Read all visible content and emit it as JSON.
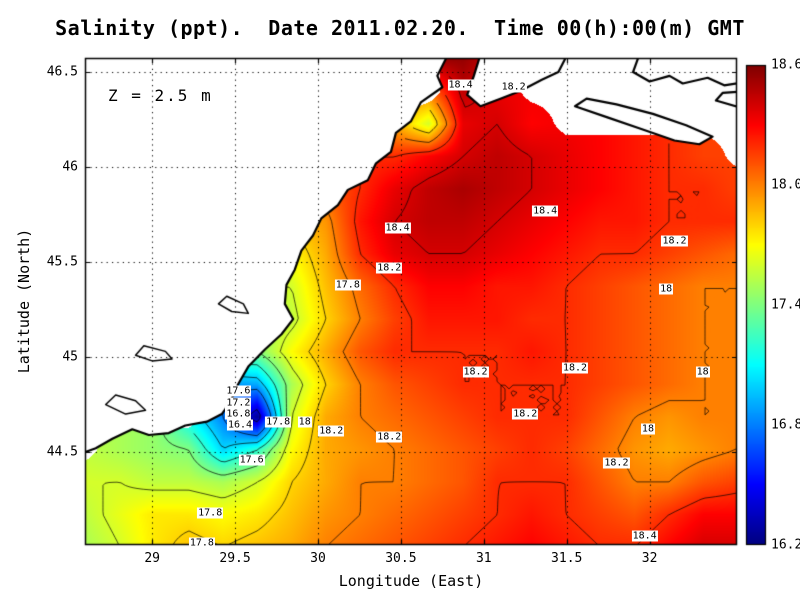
{
  "title": "Salinity (ppt).  Date 2011.02.20.  Time 00(h):00(m) GMT",
  "annotation": "Z = 2.5 m",
  "axes": {
    "x_label": "Longitude (East)",
    "y_label": "Latitude (North)"
  },
  "colorbar": {
    "min": 16.2,
    "max": 18.6,
    "ticks": [
      {
        "v": 18.6,
        "label": "18.6"
      },
      {
        "v": 18.0,
        "label": "18.0"
      },
      {
        "v": 17.4,
        "label": "17.4"
      },
      {
        "v": 16.8,
        "label": "16.8"
      },
      {
        "v": 16.2,
        "label": "16.2"
      }
    ]
  },
  "chart_data": {
    "type": "heatmap",
    "variable": "Salinity (ppt)",
    "title": "Salinity (ppt).  Date 2011.02.20.  Time 00(h):00(m) GMT",
    "xlabel": "Longitude (East)",
    "ylabel": "Latitude (North)",
    "lon_range": [
      28.595,
      32.527
    ],
    "lat_range": [
      44.011,
      46.574
    ],
    "x_ticks": {
      "values": [
        29,
        29.5,
        30,
        30.5,
        31,
        31.5,
        32
      ],
      "labels": [
        "29",
        "29.5",
        "30",
        "30.5",
        "31",
        "31.5",
        "32"
      ]
    },
    "y_ticks": {
      "values": [
        44.5,
        45,
        45.5,
        46,
        46.5
      ],
      "labels": [
        "44.5",
        "45",
        "45.5",
        "46",
        "46.5"
      ]
    },
    "colors": {
      "background": "#ffffff",
      "land": "#ffffff",
      "coastline": "#000000",
      "contour": "#000000",
      "grid": "#000000"
    },
    "colormap": [
      {
        "v": 16.2,
        "color": "#000080"
      },
      {
        "v": 16.5,
        "color": "#0000ff"
      },
      {
        "v": 17.1,
        "color": "#00ffff"
      },
      {
        "v": 17.7,
        "color": "#ffff00"
      },
      {
        "v": 18.3,
        "color": "#ff0000"
      },
      {
        "v": 18.6,
        "color": "#800000"
      }
    ],
    "contour_levels": [
      16.4,
      16.8,
      17.0,
      17.2,
      17.4,
      17.6,
      17.8,
      18.0,
      18.2,
      18.4
    ],
    "grid": {
      "nx": 20,
      "ny": 16,
      "lons": [
        28.6,
        28.81,
        29.01,
        29.22,
        29.43,
        29.63,
        29.84,
        30.05,
        30.25,
        30.46,
        30.67,
        30.87,
        31.08,
        31.29,
        31.49,
        31.7,
        31.91,
        32.11,
        32.32,
        32.53
      ],
      "lats": [
        46.57,
        46.4,
        46.23,
        46.06,
        45.89,
        45.71,
        45.54,
        45.37,
        45.2,
        45.03,
        44.86,
        44.68,
        44.51,
        44.34,
        44.17,
        44.0
      ],
      "values": [
        [
          null,
          null,
          null,
          null,
          null,
          null,
          null,
          null,
          null,
          null,
          null,
          18.55,
          18.4,
          null,
          null,
          null,
          null,
          null,
          null,
          null
        ],
        [
          null,
          null,
          null,
          null,
          null,
          null,
          null,
          null,
          null,
          null,
          null,
          18.45,
          18.35,
          null,
          null,
          null,
          null,
          null,
          null,
          null
        ],
        [
          null,
          null,
          null,
          null,
          null,
          null,
          null,
          null,
          null,
          null,
          17.6,
          18.35,
          18.4,
          18.3,
          null,
          null,
          null,
          null,
          null,
          null
        ],
        [
          null,
          null,
          null,
          null,
          null,
          null,
          null,
          null,
          null,
          18.2,
          18.3,
          18.4,
          18.45,
          18.4,
          18.35,
          18.3,
          18.25,
          18.2,
          18.15,
          null
        ],
        [
          null,
          null,
          null,
          null,
          null,
          null,
          null,
          null,
          18.2,
          18.35,
          18.45,
          18.5,
          18.45,
          18.4,
          18.35,
          18.3,
          18.25,
          18.2,
          18.2,
          18.15
        ],
        [
          null,
          null,
          null,
          null,
          null,
          null,
          null,
          17.95,
          18.25,
          18.4,
          18.45,
          18.45,
          18.4,
          18.35,
          18.3,
          18.25,
          18.25,
          18.2,
          18.2,
          18.2
        ],
        [
          null,
          null,
          null,
          null,
          null,
          null,
          17.7,
          17.9,
          18.2,
          18.35,
          18.4,
          18.4,
          18.35,
          18.3,
          18.25,
          18.2,
          18.2,
          18.15,
          18.1,
          18.05
        ],
        [
          null,
          null,
          null,
          null,
          null,
          null,
          17.6,
          17.85,
          18.05,
          18.2,
          18.3,
          18.3,
          18.25,
          18.25,
          18.2,
          18.15,
          18.1,
          18.05,
          18.0,
          18.0
        ],
        [
          null,
          null,
          null,
          null,
          null,
          null,
          17.55,
          17.8,
          18.0,
          18.15,
          18.25,
          18.25,
          18.25,
          18.2,
          18.2,
          18.15,
          18.1,
          18.05,
          18.0,
          18.0
        ],
        [
          null,
          null,
          null,
          null,
          null,
          17.4,
          17.7,
          17.9,
          18.1,
          18.2,
          18.2,
          18.2,
          18.2,
          18.25,
          18.2,
          18.15,
          18.1,
          18.05,
          18.0,
          18.0
        ],
        [
          null,
          null,
          null,
          null,
          null,
          16.9,
          17.5,
          17.8,
          18.0,
          18.1,
          18.15,
          18.2,
          18.2,
          18.2,
          18.2,
          18.15,
          18.1,
          18.05,
          18.0,
          18.0
        ],
        [
          null,
          null,
          null,
          null,
          16.8,
          16.25,
          17.6,
          17.9,
          18.0,
          18.05,
          18.1,
          18.15,
          18.2,
          18.2,
          18.2,
          18.1,
          18.0,
          17.95,
          18.0,
          18.0
        ],
        [
          null,
          17.5,
          17.45,
          17.4,
          17.0,
          17.2,
          17.7,
          17.9,
          17.95,
          18.0,
          18.05,
          18.1,
          18.15,
          18.2,
          18.15,
          18.05,
          17.95,
          17.9,
          17.95,
          18.0
        ],
        [
          17.6,
          17.6,
          17.55,
          17.55,
          17.5,
          17.6,
          17.8,
          17.9,
          18.0,
          18.0,
          18.05,
          18.1,
          18.2,
          18.2,
          18.2,
          18.1,
          18.0,
          18.0,
          18.1,
          18.15
        ],
        [
          17.55,
          17.65,
          17.75,
          17.75,
          17.7,
          17.75,
          17.85,
          17.95,
          18.0,
          18.05,
          18.1,
          18.15,
          18.2,
          18.25,
          18.2,
          18.15,
          18.1,
          18.2,
          18.3,
          18.3
        ],
        [
          17.5,
          17.6,
          17.75,
          17.85,
          17.8,
          17.85,
          17.9,
          18.0,
          18.05,
          18.1,
          18.15,
          18.2,
          18.25,
          18.3,
          18.25,
          18.2,
          18.2,
          18.3,
          18.4,
          18.4
        ]
      ]
    },
    "contour_labels": [
      {
        "t": "18.4",
        "lon": 30.86,
        "lat": 46.43
      },
      {
        "t": "18.2",
        "lon": 31.18,
        "lat": 46.42
      },
      {
        "t": "18.4",
        "lon": 31.37,
        "lat": 45.77
      },
      {
        "t": "18.4",
        "lon": 30.48,
        "lat": 45.68
      },
      {
        "t": "18.2",
        "lon": 32.15,
        "lat": 45.61
      },
      {
        "t": "18.2",
        "lon": 30.43,
        "lat": 45.47
      },
      {
        "t": "17.8",
        "lon": 30.18,
        "lat": 45.38
      },
      {
        "t": "18",
        "lon": 32.1,
        "lat": 45.36
      },
      {
        "t": "18.2",
        "lon": 30.95,
        "lat": 44.92
      },
      {
        "t": "18.2",
        "lon": 31.55,
        "lat": 44.94
      },
      {
        "t": "18",
        "lon": 32.32,
        "lat": 44.92
      },
      {
        "t": "18.2",
        "lon": 31.25,
        "lat": 44.7
      },
      {
        "t": "18",
        "lon": 31.99,
        "lat": 44.62
      },
      {
        "t": "18.2",
        "lon": 31.8,
        "lat": 44.44
      },
      {
        "t": "18.2",
        "lon": 30.43,
        "lat": 44.58
      },
      {
        "t": "18.4",
        "lon": 31.97,
        "lat": 44.06
      },
      {
        "t": "17.8",
        "lon": 29.76,
        "lat": 44.66
      },
      {
        "t": "18",
        "lon": 29.92,
        "lat": 44.66
      },
      {
        "t": "18.2",
        "lon": 30.08,
        "lat": 44.61
      },
      {
        "t": "17.6",
        "lon": 29.6,
        "lat": 44.46
      },
      {
        "t": "17.8",
        "lon": 29.35,
        "lat": 44.18
      },
      {
        "t": "17.8",
        "lon": 29.3,
        "lat": 44.02
      },
      {
        "t": "17.6",
        "lon": 29.52,
        "lat": 44.82
      },
      {
        "t": "17.2",
        "lon": 29.52,
        "lat": 44.76
      },
      {
        "t": "16.8",
        "lon": 29.52,
        "lat": 44.7
      },
      {
        "t": "16.4",
        "lon": 29.53,
        "lat": 44.64
      }
    ],
    "coastlines": [
      [
        [
          28.5,
          46.62
        ],
        [
          30.8,
          46.62
        ],
        [
          30.72,
          46.48
        ],
        [
          30.75,
          46.42
        ],
        [
          30.62,
          46.34
        ],
        [
          30.56,
          46.24
        ],
        [
          30.47,
          46.18
        ],
        [
          30.44,
          46.08
        ],
        [
          30.35,
          46.02
        ],
        [
          30.3,
          45.93
        ],
        [
          30.18,
          45.88
        ],
        [
          30.12,
          45.8
        ],
        [
          30.02,
          45.73
        ],
        [
          29.97,
          45.64
        ],
        [
          29.9,
          45.56
        ],
        [
          29.86,
          45.46
        ],
        [
          29.81,
          45.38
        ],
        [
          29.8,
          45.28
        ],
        [
          29.85,
          45.2
        ],
        [
          29.78,
          45.12
        ],
        [
          29.68,
          45.04
        ],
        [
          29.58,
          44.95
        ],
        [
          29.52,
          44.86
        ],
        [
          29.47,
          44.76
        ],
        [
          29.42,
          44.7
        ],
        [
          29.33,
          44.66
        ],
        [
          29.2,
          44.64
        ],
        [
          29.1,
          44.6
        ],
        [
          28.98,
          44.59
        ],
        [
          28.88,
          44.62
        ],
        [
          28.76,
          44.57
        ],
        [
          28.66,
          44.52
        ],
        [
          28.5,
          44.47
        ]
      ],
      [
        [
          30.99,
          46.62
        ],
        [
          30.94,
          46.48
        ],
        [
          30.9,
          46.38
        ],
        [
          30.98,
          46.32
        ],
        [
          31.1,
          46.36
        ],
        [
          31.22,
          46.4
        ],
        [
          31.35,
          46.46
        ],
        [
          31.45,
          46.5
        ],
        [
          31.52,
          46.62
        ]
      ],
      [
        [
          31.55,
          46.32
        ],
        [
          31.75,
          46.26
        ],
        [
          31.95,
          46.2
        ],
        [
          32.15,
          46.14
        ],
        [
          32.3,
          46.12
        ],
        [
          32.38,
          46.16
        ],
        [
          32.22,
          46.22
        ],
        [
          32.02,
          46.28
        ],
        [
          31.8,
          46.33
        ],
        [
          31.62,
          46.36
        ]
      ],
      [
        [
          31.95,
          46.62
        ],
        [
          31.9,
          46.5
        ],
        [
          32.0,
          46.45
        ],
        [
          32.12,
          46.48
        ],
        [
          32.2,
          46.44
        ],
        [
          32.35,
          46.47
        ],
        [
          32.45,
          46.43
        ],
        [
          32.6,
          46.45
        ],
        [
          32.6,
          46.62
        ]
      ],
      [
        [
          32.4,
          46.35
        ],
        [
          32.6,
          46.3
        ],
        [
          32.6,
          46.4
        ],
        [
          32.44,
          46.39
        ]
      ]
    ],
    "lakes": [
      [
        [
          28.95,
          45.06
        ],
        [
          29.08,
          45.03
        ],
        [
          29.12,
          44.99
        ],
        [
          29.0,
          44.98
        ],
        [
          28.9,
          45.01
        ]
      ],
      [
        [
          28.78,
          44.8
        ],
        [
          28.9,
          44.77
        ],
        [
          28.96,
          44.72
        ],
        [
          28.84,
          44.7
        ],
        [
          28.72,
          44.75
        ]
      ],
      [
        [
          29.45,
          45.32
        ],
        [
          29.55,
          45.28
        ],
        [
          29.58,
          45.23
        ],
        [
          29.48,
          45.24
        ],
        [
          29.4,
          45.28
        ]
      ]
    ]
  }
}
